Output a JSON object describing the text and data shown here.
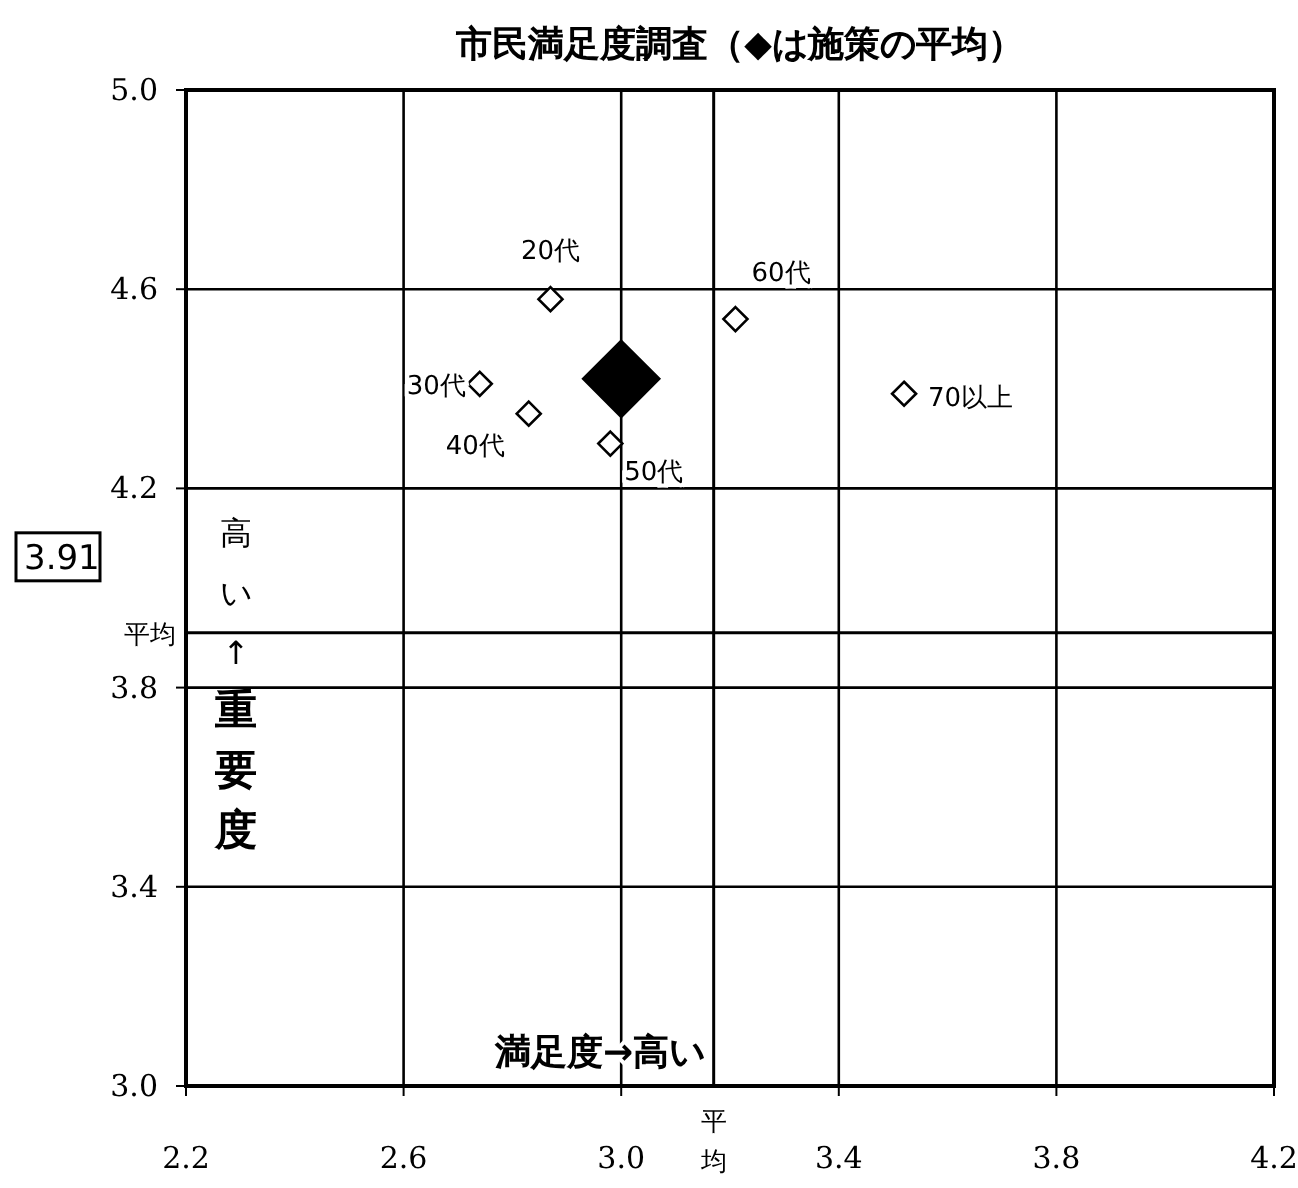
{
  "chart_data": {
    "type": "scatter",
    "title": "市民満足度調査（◆は施策の平均）",
    "annotations": [
      "高い↑重要度",
      "満足度→高い",
      "平均"
    ],
    "xlim": [
      2.2,
      4.2
    ],
    "xticks": [
      {
        "value": 2.2,
        "label": "2.2"
      },
      {
        "value": 2.6,
        "label": "2.6"
      },
      {
        "value": 3.0,
        "label": "3.0"
      },
      {
        "value": 3.4,
        "label": "3.4"
      },
      {
        "value": 3.8,
        "label": "3.8"
      },
      {
        "value": 4.2,
        "label": "4.2"
      }
    ],
    "ylim": [
      3.0,
      5.0
    ],
    "yticks": [
      {
        "value": 3.0,
        "label": "3.0"
      },
      {
        "value": 3.4,
        "label": "3.4"
      },
      {
        "value": 3.8,
        "label": "3.8"
      },
      {
        "value": 4.2,
        "label": "4.2"
      },
      {
        "value": 4.6,
        "label": "4.6"
      },
      {
        "value": 5.0,
        "label": "5.0"
      }
    ],
    "grid": true,
    "marker": "diamond",
    "ref_lines": [
      {
        "axis": "y",
        "value": 3.91,
        "label": "3.91"
      },
      {
        "axis": "x",
        "value": 3.17,
        "label": "平均"
      }
    ],
    "series": [
      {
        "name": "20代",
        "color": "#ffffff",
        "x": [
          2.87
        ],
        "values": [
          4.58
        ]
      },
      {
        "name": "30代",
        "color": "#ffffff",
        "x": [
          2.74
        ],
        "values": [
          4.41
        ]
      },
      {
        "name": "40代",
        "color": "#ffffff",
        "x": [
          2.83
        ],
        "values": [
          4.35
        ]
      },
      {
        "name": "50代",
        "color": "#ffffff",
        "x": [
          2.98
        ],
        "values": [
          4.29
        ]
      },
      {
        "name": "60代",
        "color": "#ffffff",
        "x": [
          3.21
        ],
        "values": [
          4.54
        ]
      },
      {
        "name": "70以上",
        "color": "#ffffff",
        "x": [
          3.52
        ],
        "values": [
          4.39
        ]
      },
      {
        "color": "#000000",
        "x": [
          3.0
        ],
        "values": [
          4.42
        ]
      }
    ]
  }
}
